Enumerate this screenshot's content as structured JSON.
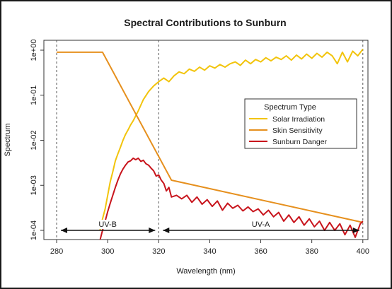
{
  "chart_data": {
    "type": "line",
    "title": "Spectral Contributions to Sunburn",
    "xlabel": "Wavelength (nm)",
    "ylabel": "Spectrum",
    "xlim": [
      275,
      402
    ],
    "ylim_log10": [
      -4,
      0
    ],
    "y_scale": "log",
    "x_ticks": [
      280,
      300,
      320,
      340,
      360,
      380,
      400
    ],
    "y_ticks": [
      {
        "value": 1,
        "label": "1e+00"
      },
      {
        "value": 0.1,
        "label": "1e-01"
      },
      {
        "value": 0.01,
        "label": "1e-02"
      },
      {
        "value": 0.001,
        "label": "1e-03"
      },
      {
        "value": 0.0001,
        "label": "1e-04"
      }
    ],
    "grid": false,
    "legend": {
      "title": "Spectrum Type",
      "position": "right"
    },
    "series": [
      {
        "name": "Solar Irradiation",
        "color": "#f2c40c",
        "x": [
          297,
          298,
          299,
          300,
          301,
          302,
          303,
          304,
          305,
          306,
          307,
          308,
          309,
          310,
          312,
          314,
          316,
          318,
          320,
          322,
          324,
          326,
          328,
          330,
          332,
          334,
          336,
          338,
          340,
          342,
          344,
          346,
          348,
          350,
          352,
          354,
          356,
          358,
          360,
          362,
          364,
          366,
          368,
          370,
          372,
          374,
          376,
          378,
          380,
          382,
          384,
          386,
          388,
          390,
          392,
          394,
          396,
          398,
          400
        ],
        "y": [
          0.0001,
          0.00018,
          0.0003,
          0.0006,
          0.0012,
          0.002,
          0.0035,
          0.005,
          0.007,
          0.01,
          0.0135,
          0.017,
          0.022,
          0.027,
          0.045,
          0.08,
          0.12,
          0.16,
          0.2,
          0.24,
          0.2,
          0.27,
          0.33,
          0.3,
          0.38,
          0.34,
          0.42,
          0.36,
          0.45,
          0.4,
          0.48,
          0.42,
          0.5,
          0.55,
          0.46,
          0.6,
          0.5,
          0.62,
          0.55,
          0.68,
          0.58,
          0.7,
          0.62,
          0.75,
          0.6,
          0.78,
          0.64,
          0.82,
          0.66,
          0.85,
          0.7,
          0.9,
          0.75,
          0.5,
          0.9,
          0.55,
          0.95,
          0.75,
          1.05
        ]
      },
      {
        "name": "Skin Sensitivity",
        "color": "#e6901e",
        "x": [
          280,
          298,
          325,
          400
        ],
        "y": [
          0.9,
          0.9,
          0.0013,
          0.00015
        ]
      },
      {
        "name": "Sunburn Danger",
        "color": "#c8141c",
        "x": [
          297,
          298,
          299,
          300,
          301,
          302,
          303,
          304,
          305,
          306,
          307,
          308,
          309,
          310,
          311,
          312,
          313,
          314,
          315,
          316,
          317,
          318,
          319,
          320,
          321,
          322,
          323,
          324,
          325,
          327,
          329,
          331,
          333,
          335,
          337,
          339,
          341,
          343,
          345,
          347,
          349,
          351,
          353,
          355,
          357,
          359,
          361,
          363,
          365,
          367,
          369,
          371,
          373,
          375,
          377,
          379,
          381,
          383,
          385,
          387,
          389,
          391,
          393,
          395,
          397,
          399,
          400
        ],
        "y": [
          6e-05,
          0.0001,
          0.00016,
          0.00026,
          0.0004,
          0.0006,
          0.0009,
          0.0013,
          0.0018,
          0.0023,
          0.0028,
          0.0033,
          0.0035,
          0.004,
          0.0037,
          0.004,
          0.0034,
          0.0036,
          0.003,
          0.0028,
          0.0024,
          0.0021,
          0.0016,
          0.0017,
          0.0013,
          0.0011,
          0.00075,
          0.0009,
          0.00055,
          0.0006,
          0.0005,
          0.0006,
          0.00042,
          0.00055,
          0.00038,
          0.00048,
          0.00034,
          0.00045,
          0.00028,
          0.0004,
          0.00031,
          0.00036,
          0.00027,
          0.00033,
          0.00026,
          0.0003,
          0.00022,
          0.00028,
          0.0002,
          0.00025,
          0.00016,
          0.00022,
          0.00015,
          0.0002,
          0.00013,
          0.00018,
          0.00012,
          0.00016,
          0.0001,
          0.00015,
          0.0001,
          0.00014,
          8e-05,
          0.00013,
          7e-05,
          0.00014,
          0.00016
        ]
      }
    ],
    "vlines": [
      280,
      320,
      400
    ],
    "regions": [
      {
        "label": "UV-B",
        "from": 280,
        "to": 320
      },
      {
        "label": "UV-A",
        "from": 320,
        "to": 400
      }
    ]
  }
}
